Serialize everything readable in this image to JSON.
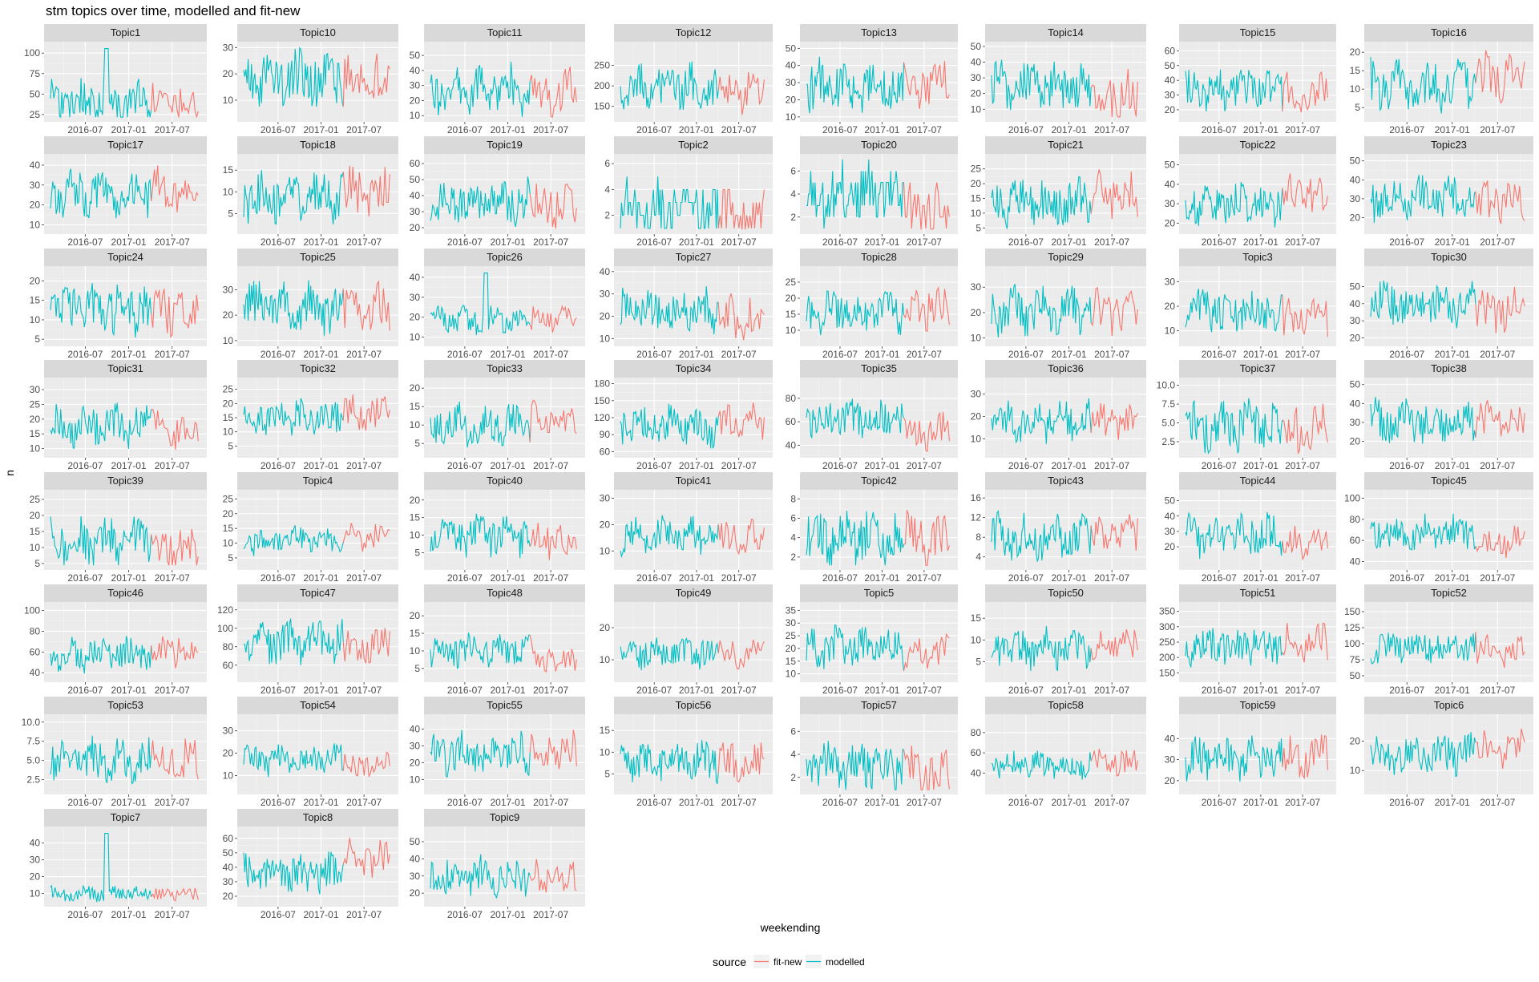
{
  "title": "stm topics over time, modelled and fit-new",
  "xlabel": "weekending",
  "ylabel": "n",
  "legend": {
    "title": "source",
    "items": [
      {
        "name": "fit-new",
        "color": "#F8766D"
      },
      {
        "name": "modelled",
        "color": "#00BFC4"
      }
    ]
  },
  "chart_data": {
    "type": "line",
    "facet_layout": "8 columns, free y scales",
    "x_ticks": [
      "2016-07",
      "2017-01",
      "2017-07"
    ],
    "x_range": [
      "2016-02",
      "2017-10"
    ],
    "grid": true,
    "legend_position": "bottom",
    "series_names": [
      "fit-new",
      "modelled"
    ],
    "fit_new_start": "2017-04",
    "facets": [
      {
        "title": "Topic1",
        "ylim": [
          20,
          110
        ],
        "yticks": [
          25,
          50,
          75,
          100
        ],
        "mean": 40,
        "amp": 22,
        "fit_mean": 40,
        "seed": 1,
        "peak": 0.55
      },
      {
        "title": "Topic10",
        "ylim": [
          3,
          31
        ],
        "yticks": [
          10,
          20,
          30
        ],
        "mean": 18,
        "amp": 9,
        "fit_mean": 17,
        "seed": 2
      },
      {
        "title": "Topic11",
        "ylim": [
          8,
          57
        ],
        "yticks": [
          10,
          20,
          30,
          40,
          50
        ],
        "mean": 28,
        "amp": 14,
        "fit_mean": 25,
        "seed": 3
      },
      {
        "title": "Topic12",
        "ylim": [
          120,
          300
        ],
        "yticks": [
          150,
          200,
          250
        ],
        "mean": 195,
        "amp": 50,
        "fit_mean": 185,
        "seed": 4
      },
      {
        "title": "Topic13",
        "ylim": [
          9,
          52
        ],
        "yticks": [
          10,
          20,
          30,
          40,
          50
        ],
        "mean": 27,
        "amp": 14,
        "fit_mean": 28,
        "seed": 5
      },
      {
        "title": "Topic14",
        "ylim": [
          4,
          51
        ],
        "yticks": [
          10,
          20,
          30,
          40,
          50
        ],
        "mean": 24,
        "amp": 14,
        "fit_mean": 18,
        "seed": 6
      },
      {
        "title": "Topic15",
        "ylim": [
          14,
          64
        ],
        "yticks": [
          20,
          30,
          40,
          50,
          60
        ],
        "mean": 33,
        "amp": 13,
        "fit_mean": 32,
        "seed": 7
      },
      {
        "title": "Topic16",
        "ylim": [
          2,
          22
        ],
        "yticks": [
          5,
          10,
          15,
          20
        ],
        "mean": 11,
        "amp": 6,
        "fit_mean": 13,
        "seed": 8
      },
      {
        "title": "Topic17",
        "ylim": [
          7,
          44
        ],
        "yticks": [
          10,
          20,
          30,
          40
        ],
        "mean": 26,
        "amp": 10,
        "fit_mean": 27,
        "seed": 9
      },
      {
        "title": "Topic18",
        "ylim": [
          1,
          18
        ],
        "yticks": [
          5,
          10,
          15
        ],
        "mean": 9,
        "amp": 5,
        "fit_mean": 10,
        "seed": 10
      },
      {
        "title": "Topic19",
        "ylim": [
          18,
          64
        ],
        "yticks": [
          20,
          30,
          40,
          50,
          60
        ],
        "mean": 36,
        "amp": 12,
        "fit_mean": 34,
        "seed": 11
      },
      {
        "title": "Topic2",
        "ylim": [
          0.8,
          6.5
        ],
        "yticks": [
          2,
          4,
          6
        ],
        "mean": 2.4,
        "amp": 1.8,
        "fit_mean": 2,
        "seed": 12,
        "integer": true
      },
      {
        "title": "Topic20",
        "ylim": [
          0.8,
          7.2
        ],
        "yticks": [
          2,
          4,
          6
        ],
        "mean": 3.8,
        "amp": 2.4,
        "fit_mean": 2.5,
        "seed": 13,
        "integer": true
      },
      {
        "title": "Topic21",
        "ylim": [
          4,
          29
        ],
        "yticks": [
          5,
          10,
          15,
          20,
          25
        ],
        "mean": 14,
        "amp": 7,
        "fit_mean": 16,
        "seed": 14
      },
      {
        "title": "Topic22",
        "ylim": [
          16,
          54
        ],
        "yticks": [
          20,
          30,
          40,
          50
        ],
        "mean": 30,
        "amp": 10,
        "fit_mean": 34,
        "seed": 15
      },
      {
        "title": "Topic23",
        "ylim": [
          13,
          52
        ],
        "yticks": [
          20,
          30,
          40,
          50
        ],
        "mean": 30,
        "amp": 10,
        "fit_mean": 28,
        "seed": 16
      },
      {
        "title": "Topic24",
        "ylim": [
          4,
          23
        ],
        "yticks": [
          5,
          10,
          15,
          20
        ],
        "mean": 13,
        "amp": 6,
        "fit_mean": 12,
        "seed": 17
      },
      {
        "title": "Topic25",
        "ylim": [
          9,
          38
        ],
        "yticks": [
          10,
          20,
          30
        ],
        "mean": 23,
        "amp": 9,
        "fit_mean": 22,
        "seed": 18
      },
      {
        "title": "Topic26",
        "ylim": [
          7,
          44
        ],
        "yticks": [
          10,
          20,
          30,
          40
        ],
        "mean": 18,
        "amp": 6,
        "fit_mean": 19,
        "seed": 19,
        "peak": 0.55
      },
      {
        "title": "Topic27",
        "ylim": [
          8,
          41
        ],
        "yticks": [
          10,
          20,
          30,
          40
        ],
        "mean": 22,
        "amp": 9,
        "fit_mean": 20,
        "seed": 20
      },
      {
        "title": "Topic28",
        "ylim": [
          6,
          29
        ],
        "yticks": [
          10,
          15,
          20,
          25
        ],
        "mean": 16,
        "amp": 6,
        "fit_mean": 17,
        "seed": 21
      },
      {
        "title": "Topic29",
        "ylim": [
          8,
          37
        ],
        "yticks": [
          10,
          20,
          30
        ],
        "mean": 21,
        "amp": 8,
        "fit_mean": 20,
        "seed": 22
      },
      {
        "title": "Topic3",
        "ylim": [
          5,
          35
        ],
        "yticks": [
          10,
          20,
          30
        ],
        "mean": 18,
        "amp": 8,
        "fit_mean": 14,
        "seed": 23
      },
      {
        "title": "Topic30",
        "ylim": [
          17,
          60
        ],
        "yticks": [
          20,
          30,
          40,
          50
        ],
        "mean": 40,
        "amp": 11,
        "fit_mean": 36,
        "seed": 24
      },
      {
        "title": "Topic31",
        "ylim": [
          8,
          33
        ],
        "yticks": [
          10,
          15,
          20,
          25,
          30
        ],
        "mean": 18,
        "amp": 6,
        "fit_mean": 17,
        "seed": 25
      },
      {
        "title": "Topic32",
        "ylim": [
          2,
          28
        ],
        "yticks": [
          5,
          10,
          15,
          20,
          25
        ],
        "mean": 15,
        "amp": 6,
        "fit_mean": 16,
        "seed": 26
      },
      {
        "title": "Topic33",
        "ylim": [
          2,
          22
        ],
        "yticks": [
          5,
          10,
          15,
          20
        ],
        "mean": 10,
        "amp": 5,
        "fit_mean": 11,
        "seed": 27
      },
      {
        "title": "Topic34",
        "ylim": [
          55,
          185
        ],
        "yticks": [
          60,
          90,
          120,
          150,
          180
        ],
        "mean": 105,
        "amp": 30,
        "fit_mean": 110,
        "seed": 28
      },
      {
        "title": "Topic35",
        "ylim": [
          32,
          95
        ],
        "yticks": [
          40,
          60,
          80
        ],
        "mean": 62,
        "amp": 14,
        "fit_mean": 52,
        "seed": 29
      },
      {
        "title": "Topic36",
        "ylim": [
          3,
          36
        ],
        "yticks": [
          10,
          20,
          30
        ],
        "mean": 18,
        "amp": 8,
        "fit_mean": 18,
        "seed": 30
      },
      {
        "title": "Topic37",
        "ylim": [
          0.8,
          10.6
        ],
        "yticks": [
          2.5,
          5.0,
          7.5,
          10.0
        ],
        "mean": 4.5,
        "amp": 3,
        "fit_mean": 4,
        "seed": 31
      },
      {
        "title": "Topic38",
        "ylim": [
          13,
          52
        ],
        "yticks": [
          20,
          30,
          40,
          50
        ],
        "mean": 30,
        "amp": 10,
        "fit_mean": 30,
        "seed": 32
      },
      {
        "title": "Topic39",
        "ylim": [
          4,
          27
        ],
        "yticks": [
          5,
          10,
          15,
          20,
          25
        ],
        "mean": 12,
        "amp": 6,
        "fit_mean": 10,
        "seed": 33
      },
      {
        "title": "Topic4",
        "ylim": [
          2,
          27
        ],
        "yticks": [
          5,
          10,
          15,
          20,
          25
        ],
        "mean": 11,
        "amp": 4,
        "fit_mean": 12,
        "seed": 34
      },
      {
        "title": "Topic40",
        "ylim": [
          1,
          22
        ],
        "yticks": [
          5,
          10,
          15,
          20
        ],
        "mean": 10,
        "amp": 5,
        "fit_mean": 8,
        "seed": 35
      },
      {
        "title": "Topic41",
        "ylim": [
          4,
          32
        ],
        "yticks": [
          10,
          20,
          30
        ],
        "mean": 16,
        "amp": 6,
        "fit_mean": 15,
        "seed": 36
      },
      {
        "title": "Topic42",
        "ylim": [
          1,
          8.6
        ],
        "yticks": [
          2,
          4,
          6,
          8
        ],
        "mean": 4,
        "amp": 2.5,
        "fit_mean": 4,
        "seed": 37
      },
      {
        "title": "Topic43",
        "ylim": [
          2,
          17
        ],
        "yticks": [
          4,
          8,
          12,
          16
        ],
        "mean": 8,
        "amp": 4,
        "fit_mean": 9,
        "seed": 38
      },
      {
        "title": "Topic44",
        "ylim": [
          7,
          55
        ],
        "yticks": [
          20,
          30,
          40,
          50
        ],
        "mean": 28,
        "amp": 12,
        "fit_mean": 22,
        "seed": 39
      },
      {
        "title": "Topic45",
        "ylim": [
          35,
          105
        ],
        "yticks": [
          40,
          60,
          80,
          100
        ],
        "mean": 68,
        "amp": 14,
        "fit_mean": 58,
        "seed": 40
      },
      {
        "title": "Topic46",
        "ylim": [
          34,
          105
        ],
        "yticks": [
          40,
          60,
          80,
          100
        ],
        "mean": 58,
        "amp": 14,
        "fit_mean": 62,
        "seed": 41
      },
      {
        "title": "Topic47",
        "ylim": [
          45,
          125
        ],
        "yticks": [
          60,
          80,
          100,
          120
        ],
        "mean": 85,
        "amp": 20,
        "fit_mean": 80,
        "seed": 42
      },
      {
        "title": "Topic48",
        "ylim": [
          2,
          23
        ],
        "yticks": [
          5,
          10,
          15,
          20
        ],
        "mean": 10,
        "amp": 4,
        "fit_mean": 8,
        "seed": 43
      },
      {
        "title": "Topic49",
        "ylim": [
          4,
          27
        ],
        "yticks": [
          10,
          20
        ],
        "mean": 12,
        "amp": 4,
        "fit_mean": 12,
        "seed": 44
      },
      {
        "title": "Topic5",
        "ylim": [
          8,
          37
        ],
        "yticks": [
          10,
          15,
          20,
          25,
          30,
          35
        ],
        "mean": 20,
        "amp": 7,
        "fit_mean": 18,
        "seed": 45
      },
      {
        "title": "Topic50",
        "ylim": [
          1,
          18
        ],
        "yticks": [
          5,
          10,
          15
        ],
        "mean": 8,
        "amp": 4,
        "fit_mean": 8,
        "seed": 46
      },
      {
        "title": "Topic51",
        "ylim": [
          130,
          370
        ],
        "yticks": [
          150,
          200,
          250,
          300,
          350
        ],
        "mean": 240,
        "amp": 55,
        "fit_mean": 250,
        "seed": 47
      },
      {
        "title": "Topic52",
        "ylim": [
          45,
          160
        ],
        "yticks": [
          50,
          75,
          100,
          125,
          150
        ],
        "mean": 95,
        "amp": 22,
        "fit_mean": 88,
        "seed": 48
      },
      {
        "title": "Topic53",
        "ylim": [
          1,
          10.6
        ],
        "yticks": [
          2.5,
          5.0,
          7.5,
          10.0
        ],
        "mean": 5,
        "amp": 2.5,
        "fit_mean": 5,
        "seed": 49
      },
      {
        "title": "Topic54",
        "ylim": [
          3,
          36
        ],
        "yticks": [
          10,
          20,
          30
        ],
        "mean": 17,
        "amp": 6,
        "fit_mean": 14,
        "seed": 50
      },
      {
        "title": "Topic55",
        "ylim": [
          3,
          47
        ],
        "yticks": [
          10,
          20,
          30,
          40
        ],
        "mean": 25,
        "amp": 11,
        "fit_mean": 28,
        "seed": 51
      },
      {
        "title": "Topic56",
        "ylim": [
          1,
          18
        ],
        "yticks": [
          5,
          10,
          15
        ],
        "mean": 8,
        "amp": 4,
        "fit_mean": 8,
        "seed": 52
      },
      {
        "title": "Topic57",
        "ylim": [
          0.8,
          7.2
        ],
        "yticks": [
          2,
          4,
          6
        ],
        "mean": 3,
        "amp": 1.8,
        "fit_mean": 2.5,
        "seed": 53
      },
      {
        "title": "Topic58",
        "ylim": [
          22,
          95
        ],
        "yticks": [
          40,
          60,
          80
        ],
        "mean": 48,
        "amp": 12,
        "fit_mean": 50,
        "seed": 54
      },
      {
        "title": "Topic59",
        "ylim": [
          15,
          50
        ],
        "yticks": [
          20,
          30,
          40
        ],
        "mean": 30,
        "amp": 9,
        "fit_mean": 32,
        "seed": 55
      },
      {
        "title": "Topic6",
        "ylim": [
          3,
          28
        ],
        "yticks": [
          10,
          20
        ],
        "mean": 16,
        "amp": 6,
        "fit_mean": 18,
        "seed": 56
      },
      {
        "title": "Topic7",
        "ylim": [
          4,
          48
        ],
        "yticks": [
          10,
          20,
          30,
          40
        ],
        "mean": 10,
        "amp": 4,
        "fit_mean": 9,
        "seed": 57,
        "peak": 0.55
      },
      {
        "title": "Topic8",
        "ylim": [
          15,
          66
        ],
        "yticks": [
          20,
          30,
          40,
          50,
          60
        ],
        "mean": 35,
        "amp": 12,
        "fit_mean": 45,
        "seed": 58
      },
      {
        "title": "Topic9",
        "ylim": [
          14,
          57
        ],
        "yticks": [
          20,
          30,
          40,
          50
        ],
        "mean": 30,
        "amp": 10,
        "fit_mean": 28,
        "seed": 59
      }
    ]
  }
}
